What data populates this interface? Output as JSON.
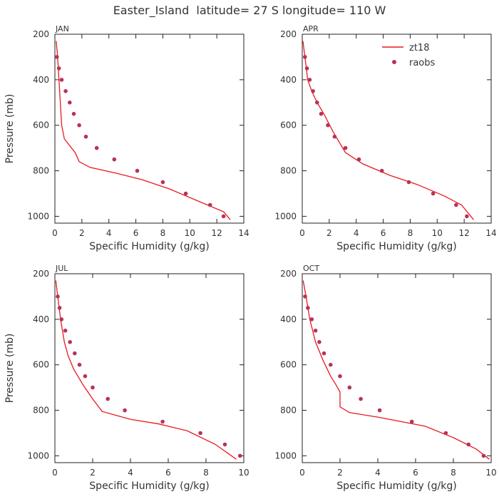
{
  "figure": {
    "title": "Easter_Island  latitude= 27 S longitude= 110 W"
  },
  "legend": {
    "model_label": "zt18",
    "obs_label": "raobs"
  },
  "colors": {
    "model_line": "#e8191e",
    "obs_marker": "#b8325a",
    "axis": "#222222",
    "text": "#333333"
  },
  "chart_data": [
    {
      "type": "line",
      "panel_label": "JAN",
      "xlabel": "Specific Humidity (g/kg)",
      "ylabel": "Pressure (mb)",
      "xlim": [
        0,
        14
      ],
      "ylim": [
        200,
        1030
      ],
      "y_inverted": true,
      "xticks": [
        0,
        2,
        4,
        6,
        8,
        10,
        12,
        14
      ],
      "yticks": [
        200,
        400,
        600,
        800,
        1000
      ],
      "grid": false,
      "series": [
        {
          "name": "zt18",
          "style": "line",
          "x": [
            0.1,
            0.2,
            0.3,
            0.4,
            0.5,
            0.7,
            1.5,
            1.8,
            2.6,
            4.5,
            6.5,
            8.5,
            10.5,
            12.5,
            13.0
          ],
          "y": [
            230,
            300,
            400,
            500,
            600,
            660,
            720,
            760,
            785,
            810,
            840,
            880,
            930,
            980,
            1015
          ]
        },
        {
          "name": "raobs",
          "style": "markers",
          "x": [
            0.15,
            0.3,
            0.5,
            0.8,
            1.1,
            1.4,
            1.8,
            2.3,
            3.1,
            4.4,
            6.1,
            8.0,
            9.7,
            11.5,
            12.5
          ],
          "y": [
            300,
            350,
            400,
            450,
            500,
            550,
            600,
            650,
            700,
            750,
            800,
            850,
            900,
            950,
            1000
          ]
        }
      ]
    },
    {
      "type": "line",
      "panel_label": "APR",
      "xlabel": "Specific Humidity (g/kg)",
      "ylabel": "",
      "xlim": [
        0,
        14
      ],
      "ylim": [
        200,
        1030
      ],
      "y_inverted": true,
      "xticks": [
        0,
        2,
        4,
        6,
        8,
        10,
        12,
        14
      ],
      "yticks": [
        200,
        400,
        600,
        800,
        1000
      ],
      "grid": false,
      "legend_position": "top-right",
      "series": [
        {
          "name": "zt18",
          "style": "line",
          "x": [
            0.05,
            0.2,
            0.4,
            0.7,
            1.1,
            1.6,
            2.3,
            3.2,
            4.5,
            6.5,
            8.5,
            10.5,
            11.8,
            12.7
          ],
          "y": [
            230,
            300,
            400,
            450,
            500,
            550,
            630,
            720,
            770,
            820,
            860,
            910,
            950,
            1015
          ]
        },
        {
          "name": "raobs",
          "style": "markers",
          "x": [
            0.2,
            0.35,
            0.55,
            0.8,
            1.1,
            1.4,
            1.9,
            2.4,
            3.2,
            4.2,
            5.9,
            7.9,
            9.7,
            11.4,
            12.2
          ],
          "y": [
            300,
            350,
            400,
            450,
            500,
            550,
            600,
            650,
            700,
            750,
            800,
            850,
            900,
            950,
            1000
          ]
        }
      ]
    },
    {
      "type": "line",
      "panel_label": "JUL",
      "xlabel": "Specific Humidity (g/kg)",
      "ylabel": "Pressure (mb)",
      "xlim": [
        0,
        10
      ],
      "ylim": [
        200,
        1030
      ],
      "y_inverted": true,
      "xticks": [
        0,
        2,
        4,
        6,
        8,
        10
      ],
      "yticks": [
        200,
        400,
        600,
        800,
        1000
      ],
      "grid": false,
      "series": [
        {
          "name": "zt18",
          "style": "line",
          "x": [
            0.05,
            0.15,
            0.3,
            0.5,
            0.7,
            1.0,
            1.5,
            2.0,
            2.5,
            4.0,
            5.5,
            7.0,
            8.5,
            9.6
          ],
          "y": [
            230,
            300,
            400,
            500,
            560,
            620,
            690,
            750,
            805,
            840,
            860,
            890,
            950,
            1015
          ]
        },
        {
          "name": "raobs",
          "style": "markers",
          "x": [
            0.15,
            0.25,
            0.35,
            0.55,
            0.8,
            1.05,
            1.3,
            1.6,
            2.0,
            2.8,
            3.7,
            5.7,
            7.7,
            9.0,
            9.8
          ],
          "y": [
            300,
            350,
            400,
            450,
            500,
            550,
            600,
            650,
            700,
            750,
            800,
            850,
            900,
            950,
            1000
          ]
        }
      ]
    },
    {
      "type": "line",
      "panel_label": "OCT",
      "xlabel": "Specific Humidity (g/kg)",
      "ylabel": "",
      "xlim": [
        0,
        10
      ],
      "ylim": [
        200,
        1030
      ],
      "y_inverted": true,
      "xticks": [
        0,
        2,
        4,
        6,
        8,
        10
      ],
      "yticks": [
        200,
        400,
        600,
        800,
        1000
      ],
      "grid": false,
      "series": [
        {
          "name": "zt18",
          "style": "line",
          "x": [
            0.05,
            0.2,
            0.4,
            0.7,
            1.1,
            1.5,
            1.8,
            2.0,
            2.0,
            2.5,
            4.0,
            6.5,
            8.0,
            9.2,
            9.9
          ],
          "y": [
            230,
            300,
            400,
            500,
            580,
            650,
            690,
            720,
            785,
            810,
            830,
            870,
            920,
            970,
            1015
          ]
        },
        {
          "name": "raobs",
          "style": "markers",
          "x": [
            0.15,
            0.3,
            0.5,
            0.7,
            0.9,
            1.15,
            1.5,
            2.0,
            2.5,
            3.1,
            4.1,
            5.8,
            7.6,
            8.8,
            9.6
          ],
          "y": [
            300,
            350,
            400,
            450,
            500,
            550,
            600,
            650,
            700,
            750,
            800,
            850,
            900,
            950,
            1000
          ]
        }
      ]
    }
  ]
}
